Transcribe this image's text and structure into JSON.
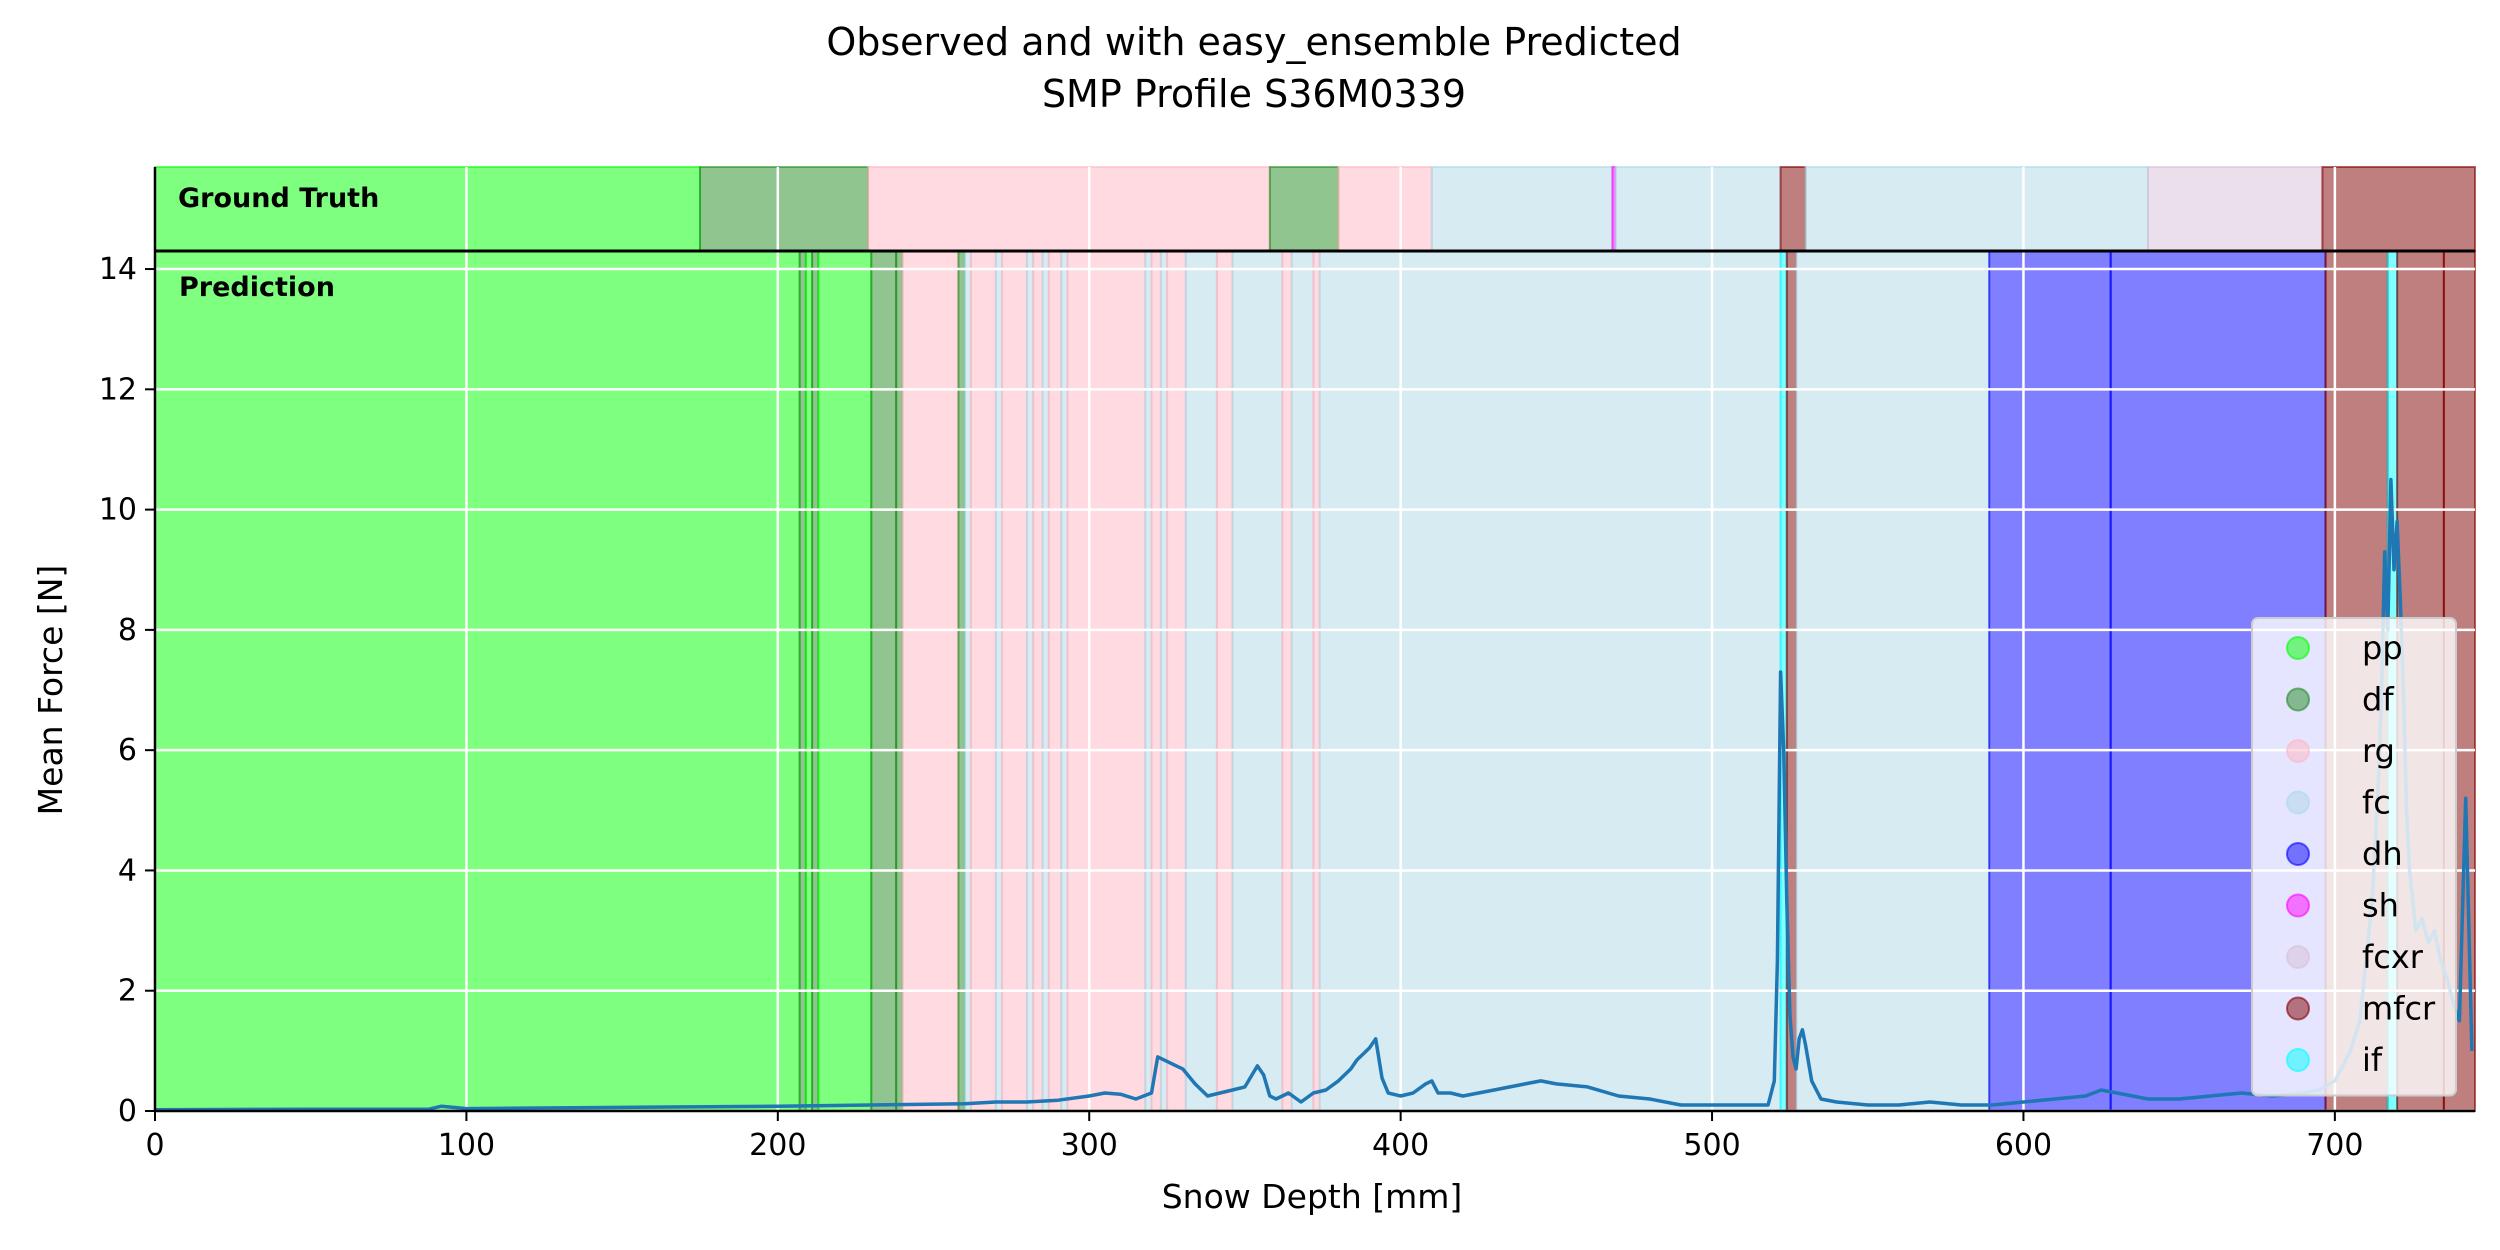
{
  "chart_data": {
    "type": "area",
    "title": "Observed and with easy_ensemble Predicted",
    "subtitle": "SMP Profile S36M0339",
    "xlabel": "Snow Depth [mm]",
    "ylabel": "Mean Force [N]",
    "xlim": [
      0,
      745
    ],
    "ylim": [
      0,
      14.3
    ],
    "xticks": [
      0,
      100,
      200,
      300,
      400,
      500,
      600,
      700
    ],
    "yticks": [
      0,
      2,
      4,
      6,
      8,
      10,
      12,
      14
    ],
    "grid": true,
    "legend_position": "right",
    "panel_labels": {
      "ground_truth": "Ground Truth",
      "prediction": "Prediction"
    },
    "classes": [
      {
        "name": "pp",
        "color": "#00ff00"
      },
      {
        "name": "df",
        "color": "#228b22"
      },
      {
        "name": "rg",
        "color": "#ffb6c1"
      },
      {
        "name": "fc",
        "color": "#add8e6"
      },
      {
        "name": "dh",
        "color": "#0000ff"
      },
      {
        "name": "sh",
        "color": "#ff00ff"
      },
      {
        "name": "fcxr",
        "color": "#d8bfd8"
      },
      {
        "name": "mfcr",
        "color": "#800000"
      },
      {
        "name": "if",
        "color": "#00ffff"
      }
    ],
    "ground_truth_segments": [
      {
        "start": 0,
        "end": 175,
        "label": "pp"
      },
      {
        "start": 175,
        "end": 229,
        "label": "df"
      },
      {
        "start": 229,
        "end": 358,
        "label": "rg"
      },
      {
        "start": 358,
        "end": 380,
        "label": "df"
      },
      {
        "start": 380,
        "end": 410,
        "label": "rg"
      },
      {
        "start": 410,
        "end": 468,
        "label": "fc"
      },
      {
        "start": 468,
        "end": 469,
        "label": "sh"
      },
      {
        "start": 469,
        "end": 522,
        "label": "fc"
      },
      {
        "start": 522,
        "end": 530,
        "label": "mfcr"
      },
      {
        "start": 530,
        "end": 640,
        "label": "fc"
      },
      {
        "start": 640,
        "end": 696,
        "label": "fcxr"
      },
      {
        "start": 696,
        "end": 745,
        "label": "mfcr"
      }
    ],
    "prediction_segments": [
      {
        "start": 0,
        "end": 207,
        "label": "pp"
      },
      {
        "start": 207,
        "end": 209,
        "label": "df"
      },
      {
        "start": 209,
        "end": 211,
        "label": "pp"
      },
      {
        "start": 211,
        "end": 213,
        "label": "df"
      },
      {
        "start": 213,
        "end": 230,
        "label": "pp"
      },
      {
        "start": 230,
        "end": 238,
        "label": "df"
      },
      {
        "start": 238,
        "end": 240,
        "label": "df"
      },
      {
        "start": 240,
        "end": 258,
        "label": "rg"
      },
      {
        "start": 258,
        "end": 260,
        "label": "df"
      },
      {
        "start": 260,
        "end": 262,
        "label": "fc"
      },
      {
        "start": 262,
        "end": 270,
        "label": "rg"
      },
      {
        "start": 270,
        "end": 272,
        "label": "fc"
      },
      {
        "start": 272,
        "end": 280,
        "label": "rg"
      },
      {
        "start": 280,
        "end": 282,
        "label": "fc"
      },
      {
        "start": 282,
        "end": 285,
        "label": "rg"
      },
      {
        "start": 285,
        "end": 287,
        "label": "fc"
      },
      {
        "start": 287,
        "end": 291,
        "label": "rg"
      },
      {
        "start": 291,
        "end": 293,
        "label": "fc"
      },
      {
        "start": 293,
        "end": 318,
        "label": "rg"
      },
      {
        "start": 318,
        "end": 320,
        "label": "fc"
      },
      {
        "start": 320,
        "end": 323,
        "label": "rg"
      },
      {
        "start": 323,
        "end": 325,
        "label": "fc"
      },
      {
        "start": 325,
        "end": 331,
        "label": "rg"
      },
      {
        "start": 331,
        "end": 341,
        "label": "fc"
      },
      {
        "start": 341,
        "end": 346,
        "label": "rg"
      },
      {
        "start": 346,
        "end": 362,
        "label": "fc"
      },
      {
        "start": 362,
        "end": 365,
        "label": "rg"
      },
      {
        "start": 365,
        "end": 372,
        "label": "fc"
      },
      {
        "start": 372,
        "end": 374,
        "label": "rg"
      },
      {
        "start": 374,
        "end": 522,
        "label": "fc"
      },
      {
        "start": 522,
        "end": 524,
        "label": "if"
      },
      {
        "start": 524,
        "end": 527,
        "label": "mfcr"
      },
      {
        "start": 527,
        "end": 589,
        "label": "fc"
      },
      {
        "start": 589,
        "end": 628,
        "label": "dh"
      },
      {
        "start": 628,
        "end": 697,
        "label": "dh"
      },
      {
        "start": 697,
        "end": 717,
        "label": "mfcr"
      },
      {
        "start": 717,
        "end": 720,
        "label": "if"
      },
      {
        "start": 720,
        "end": 735,
        "label": "mfcr"
      },
      {
        "start": 735,
        "end": 745,
        "label": "mfcr"
      }
    ],
    "series": [
      {
        "x": [
          0,
          50,
          88,
          92,
          100,
          150,
          200,
          230,
          260,
          270,
          280,
          290,
          300,
          305,
          310,
          315,
          320,
          322,
          324,
          326,
          328,
          330,
          334,
          338,
          342,
          346,
          350,
          354,
          356,
          358,
          360,
          364,
          368,
          372,
          376,
          380,
          384,
          386,
          388,
          390,
          392,
          394,
          396,
          400,
          404,
          408,
          410,
          412,
          416,
          420,
          430,
          440,
          445,
          450,
          460,
          470,
          480,
          490,
          500,
          510,
          518,
          520,
          521,
          522,
          523,
          524,
          525,
          526,
          527,
          528,
          529,
          530,
          532,
          535,
          540,
          550,
          560,
          570,
          580,
          590,
          600,
          610,
          620,
          625,
          630,
          640,
          650,
          660,
          670,
          680,
          690,
          695,
          700,
          705,
          708,
          710,
          712,
          714,
          715,
          716,
          717,
          718,
          719,
          720,
          721,
          722,
          723,
          724,
          725,
          726,
          728,
          730,
          732,
          734,
          736,
          738,
          740,
          742,
          744
        ],
        "y": [
          0.02,
          0.03,
          0.03,
          0.08,
          0.04,
          0.06,
          0.08,
          0.1,
          0.12,
          0.15,
          0.15,
          0.18,
          0.25,
          0.3,
          0.28,
          0.2,
          0.3,
          0.9,
          0.85,
          0.8,
          0.75,
          0.7,
          0.45,
          0.25,
          0.3,
          0.35,
          0.4,
          0.75,
          0.6,
          0.25,
          0.2,
          0.3,
          0.15,
          0.3,
          0.35,
          0.5,
          0.7,
          0.85,
          0.95,
          1.05,
          1.2,
          0.55,
          0.3,
          0.25,
          0.3,
          0.45,
          0.5,
          0.3,
          0.3,
          0.25,
          0.35,
          0.45,
          0.5,
          0.45,
          0.4,
          0.25,
          0.2,
          0.1,
          0.1,
          0.1,
          0.1,
          0.5,
          2.5,
          7.3,
          6.0,
          3.5,
          1.6,
          0.9,
          0.7,
          1.2,
          1.35,
          1.1,
          0.5,
          0.2,
          0.15,
          0.1,
          0.1,
          0.15,
          0.1,
          0.1,
          0.15,
          0.2,
          0.25,
          0.35,
          0.3,
          0.2,
          0.2,
          0.25,
          0.3,
          0.25,
          0.3,
          0.35,
          0.5,
          1.0,
          1.5,
          2.5,
          3.5,
          5.5,
          7.0,
          9.3,
          8.0,
          10.5,
          9.0,
          9.8,
          8.5,
          7.0,
          5.0,
          4.0,
          3.5,
          3.0,
          3.2,
          2.8,
          3.0,
          2.5,
          2.2,
          1.8,
          1.5,
          5.2,
          1.0
        ]
      }
    ]
  }
}
